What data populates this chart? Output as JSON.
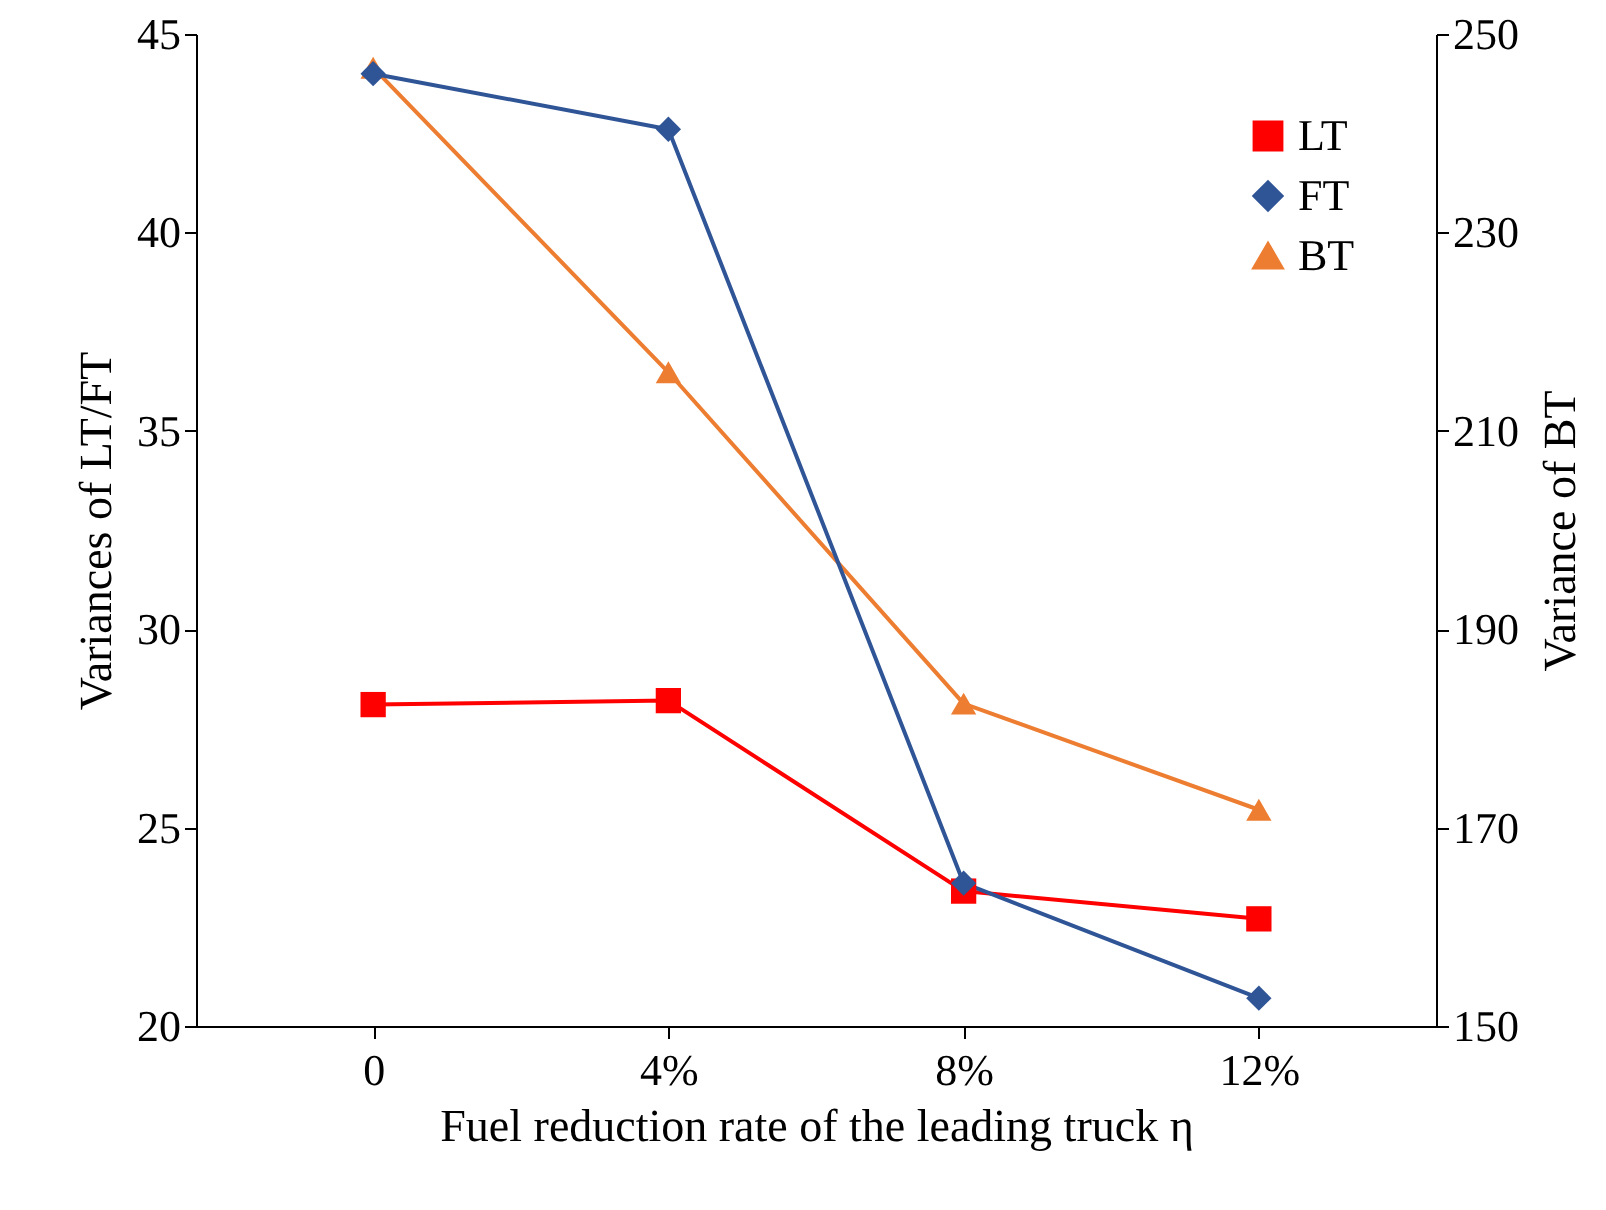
{
  "chart_data": {
    "type": "line",
    "xlabel": "Fuel reduction rate of the leading truck η",
    "ylabel": "Variances of  LT/FT",
    "y2label": "Variance of  BT",
    "categories": [
      "0",
      "4%",
      "8%",
      "12%"
    ],
    "series": [
      {
        "name": "LT",
        "color": "#ff0000",
        "marker": "square",
        "values": [
          28.1,
          28.2,
          23.4,
          22.7
        ]
      },
      {
        "name": "FT",
        "color": "#2f5597",
        "marker": "diamond",
        "values": [
          44.0,
          42.6,
          23.6,
          20.7
        ]
      },
      {
        "name": "BT",
        "color": "#ed7d31",
        "marker": "triangle",
        "axis": "y2",
        "values": [
          246.6,
          215.9,
          182.5,
          171.8
        ]
      }
    ],
    "ylim": [
      20,
      45
    ],
    "yticks": [
      20,
      25,
      30,
      35,
      40,
      45
    ],
    "y2lim": [
      150,
      250
    ],
    "y2ticks": [
      150,
      170,
      190,
      210,
      230,
      250
    ],
    "grid": false,
    "legend": "top right"
  }
}
